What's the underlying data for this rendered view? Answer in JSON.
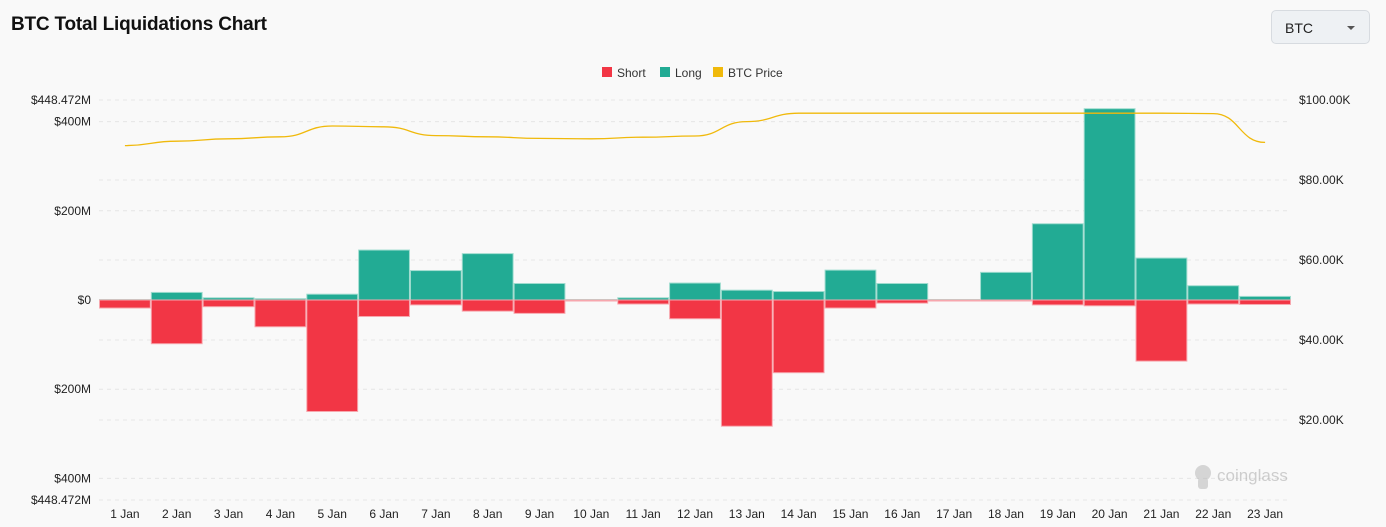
{
  "header": {
    "title": "BTC Total Liquidations Chart"
  },
  "coin_select": {
    "value": "BTC"
  },
  "watermark": "coinglass",
  "chart_data": {
    "type": "bar",
    "title": "",
    "legend_position": "top",
    "grid": true,
    "colors": {
      "Short": "#f23645",
      "Long": "#22ab94",
      "BTC Price": "#f0b90b"
    },
    "categories": [
      "1 Jan",
      "2 Jan",
      "3 Jan",
      "4 Jan",
      "5 Jan",
      "6 Jan",
      "7 Jan",
      "8 Jan",
      "9 Jan",
      "10 Jan",
      "11 Jan",
      "12 Jan",
      "13 Jan",
      "14 Jan",
      "15 Jan",
      "16 Jan",
      "17 Jan",
      "18 Jan",
      "19 Jan",
      "20 Jan",
      "21 Jan",
      "22 Jan",
      "23 Jan"
    ],
    "left_axis": {
      "unit": "USD millions",
      "range": [
        -448.472,
        448.472
      ],
      "ticks": [
        448.472,
        400,
        200,
        0,
        -200,
        -400,
        -448.472
      ],
      "tick_labels": [
        "$448.472M",
        "$400M",
        "$200M",
        "$0",
        "$200M",
        "$400M",
        "$448.472M"
      ]
    },
    "right_axis": {
      "unit": "USD thousands",
      "range": [
        0,
        100
      ],
      "ticks": [
        100,
        80,
        60,
        40,
        20
      ],
      "tick_labels": [
        "$100.00K",
        "$80.00K",
        "$60.00K",
        "$40.00K",
        "$20.00K"
      ]
    },
    "series": [
      {
        "name": "Short",
        "type": "bar",
        "axis": "left",
        "values": [
          -18,
          -98,
          -15,
          -60,
          -250,
          -37,
          -11,
          -25,
          -30,
          -1,
          -9,
          -42,
          -283,
          -163,
          -18,
          -7,
          -1,
          -1,
          -11,
          -13,
          -137,
          -9,
          -10
        ]
      },
      {
        "name": "Long",
        "type": "bar",
        "axis": "left",
        "values": [
          1,
          17,
          5,
          3,
          13,
          112,
          66,
          104,
          37,
          1,
          5,
          38,
          22,
          19,
          67,
          37,
          1,
          62,
          171,
          429,
          94,
          32,
          8
        ]
      },
      {
        "name": "BTC Price",
        "type": "line",
        "axis": "right",
        "values": [
          88.6,
          89.7,
          90.3,
          90.8,
          93.5,
          93.3,
          91.1,
          90.8,
          90.4,
          90.3,
          90.7,
          91.0,
          94.6,
          96.7,
          96.7,
          96.7,
          96.7,
          96.7,
          96.7,
          96.7,
          96.7,
          96.6,
          89.4
        ]
      }
    ]
  }
}
